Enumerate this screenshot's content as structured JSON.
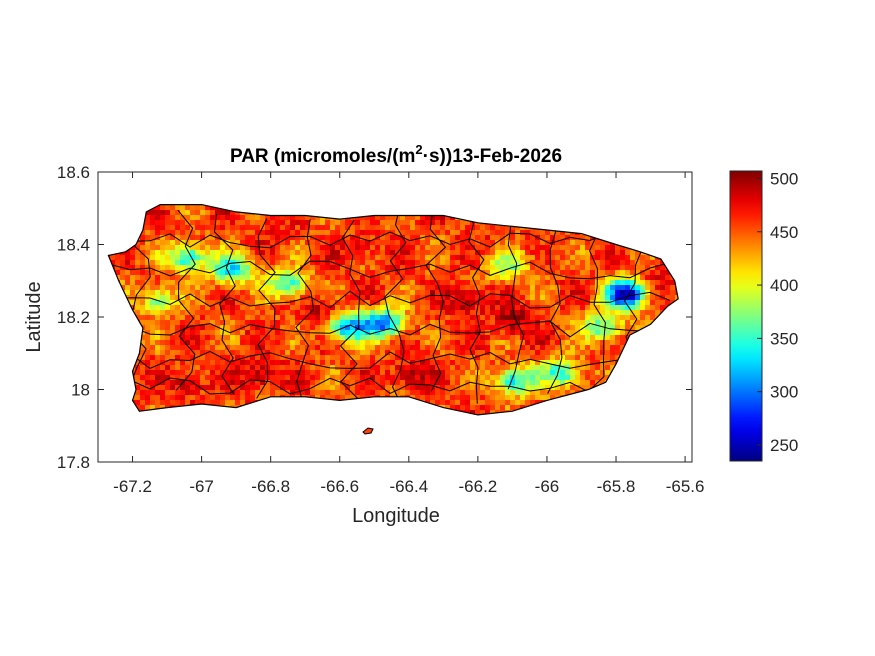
{
  "title": {
    "prefix": "PAR (micromoles/(m",
    "superscript": "2",
    "suffix": "·s))13-Feb-2026"
  },
  "xlabel": "Longitude",
  "ylabel": "Latitude",
  "x_ticks": [
    "-67.2",
    "-67",
    "-66.8",
    "-66.6",
    "-66.4",
    "-66.2",
    "-66",
    "-65.8",
    "-65.6"
  ],
  "y_ticks": [
    "18.6",
    "18.4",
    "18.2",
    "18",
    "17.8"
  ],
  "colorbar_ticks": [
    "500",
    "450",
    "400",
    "350",
    "300",
    "250"
  ],
  "colors": {
    "colormap": "jet",
    "colormap_stops": [
      "#00008f",
      "#0000ff",
      "#00ffff",
      "#ffff00",
      "#ff0000",
      "#800000"
    ],
    "axes_frame": "#262626",
    "boundaries": "#000000"
  },
  "chart_data": {
    "type": "heatmap",
    "variable": "PAR",
    "date": "13-Feb-2026",
    "xlim": [
      -67.3,
      -65.58
    ],
    "ylim": [
      17.8,
      18.6
    ],
    "clim": [
      235,
      507
    ],
    "colormap": "jet",
    "region_outline_lonlat": [
      [
        -67.27,
        18.37
      ],
      [
        -67.22,
        18.38
      ],
      [
        -67.19,
        18.4
      ],
      [
        -67.17,
        18.44
      ],
      [
        -67.16,
        18.49
      ],
      [
        -67.12,
        18.51
      ],
      [
        -67.0,
        18.51
      ],
      [
        -66.9,
        18.49
      ],
      [
        -66.8,
        18.48
      ],
      [
        -66.7,
        18.48
      ],
      [
        -66.6,
        18.47
      ],
      [
        -66.5,
        18.48
      ],
      [
        -66.4,
        18.48
      ],
      [
        -66.3,
        18.48
      ],
      [
        -66.2,
        18.46
      ],
      [
        -66.1,
        18.45
      ],
      [
        -66.0,
        18.44
      ],
      [
        -65.9,
        18.43
      ],
      [
        -65.8,
        18.4
      ],
      [
        -65.73,
        18.38
      ],
      [
        -65.67,
        18.36
      ],
      [
        -65.63,
        18.3
      ],
      [
        -65.62,
        18.25
      ],
      [
        -65.65,
        18.23
      ],
      [
        -65.7,
        18.18
      ],
      [
        -65.76,
        18.15
      ],
      [
        -65.8,
        18.07
      ],
      [
        -65.83,
        18.02
      ],
      [
        -65.88,
        18.0
      ],
      [
        -66.0,
        17.97
      ],
      [
        -66.1,
        17.94
      ],
      [
        -66.2,
        17.93
      ],
      [
        -66.3,
        17.95
      ],
      [
        -66.4,
        17.98
      ],
      [
        -66.5,
        17.98
      ],
      [
        -66.6,
        17.97
      ],
      [
        -66.7,
        17.98
      ],
      [
        -66.8,
        17.98
      ],
      [
        -66.9,
        17.95
      ],
      [
        -67.0,
        17.96
      ],
      [
        -67.1,
        17.95
      ],
      [
        -67.18,
        17.94
      ],
      [
        -67.2,
        17.97
      ],
      [
        -67.19,
        18.0
      ],
      [
        -67.2,
        18.05
      ],
      [
        -67.18,
        18.1
      ],
      [
        -67.17,
        18.17
      ],
      [
        -67.2,
        18.22
      ],
      [
        -67.24,
        18.3
      ],
      [
        -67.27,
        18.37
      ]
    ],
    "low_value_areas": [
      {
        "lon": -65.78,
        "lat": 18.27,
        "value": 240
      },
      {
        "lon": -66.58,
        "lat": 18.18,
        "value": 300
      },
      {
        "lon": -66.48,
        "lat": 18.19,
        "value": 305
      },
      {
        "lon": -66.92,
        "lat": 18.34,
        "value": 330
      },
      {
        "lon": -67.05,
        "lat": 18.37,
        "value": 345
      },
      {
        "lon": -66.76,
        "lat": 18.3,
        "value": 350
      },
      {
        "lon": -66.1,
        "lat": 18.03,
        "value": 340
      },
      {
        "lon": -65.97,
        "lat": 18.05,
        "value": 345
      },
      {
        "lon": -66.12,
        "lat": 18.35,
        "value": 370
      },
      {
        "lon": -65.85,
        "lat": 18.18,
        "value": 360
      },
      {
        "lon": -67.13,
        "lat": 18.25,
        "value": 380
      }
    ],
    "high_value_areas": [
      {
        "lon": -66.1,
        "lat": 18.2,
        "value": 500
      },
      {
        "lon": -66.25,
        "lat": 18.25,
        "value": 495
      },
      {
        "lon": -66.4,
        "lat": 18.05,
        "value": 495
      },
      {
        "lon": -66.85,
        "lat": 18.05,
        "value": 490
      },
      {
        "lon": -66.65,
        "lat": 18.22,
        "value": 490
      },
      {
        "lon": -66.55,
        "lat": 18.4,
        "value": 470
      },
      {
        "lon": -66.8,
        "lat": 18.45,
        "value": 470
      },
      {
        "lon": -67.05,
        "lat": 18.02,
        "value": 480
      },
      {
        "lon": -65.68,
        "lat": 18.3,
        "value": 485
      },
      {
        "lon": -66.0,
        "lat": 18.4,
        "value": 460
      },
      {
        "lon": -66.2,
        "lat": 18.42,
        "value": 465
      }
    ]
  }
}
